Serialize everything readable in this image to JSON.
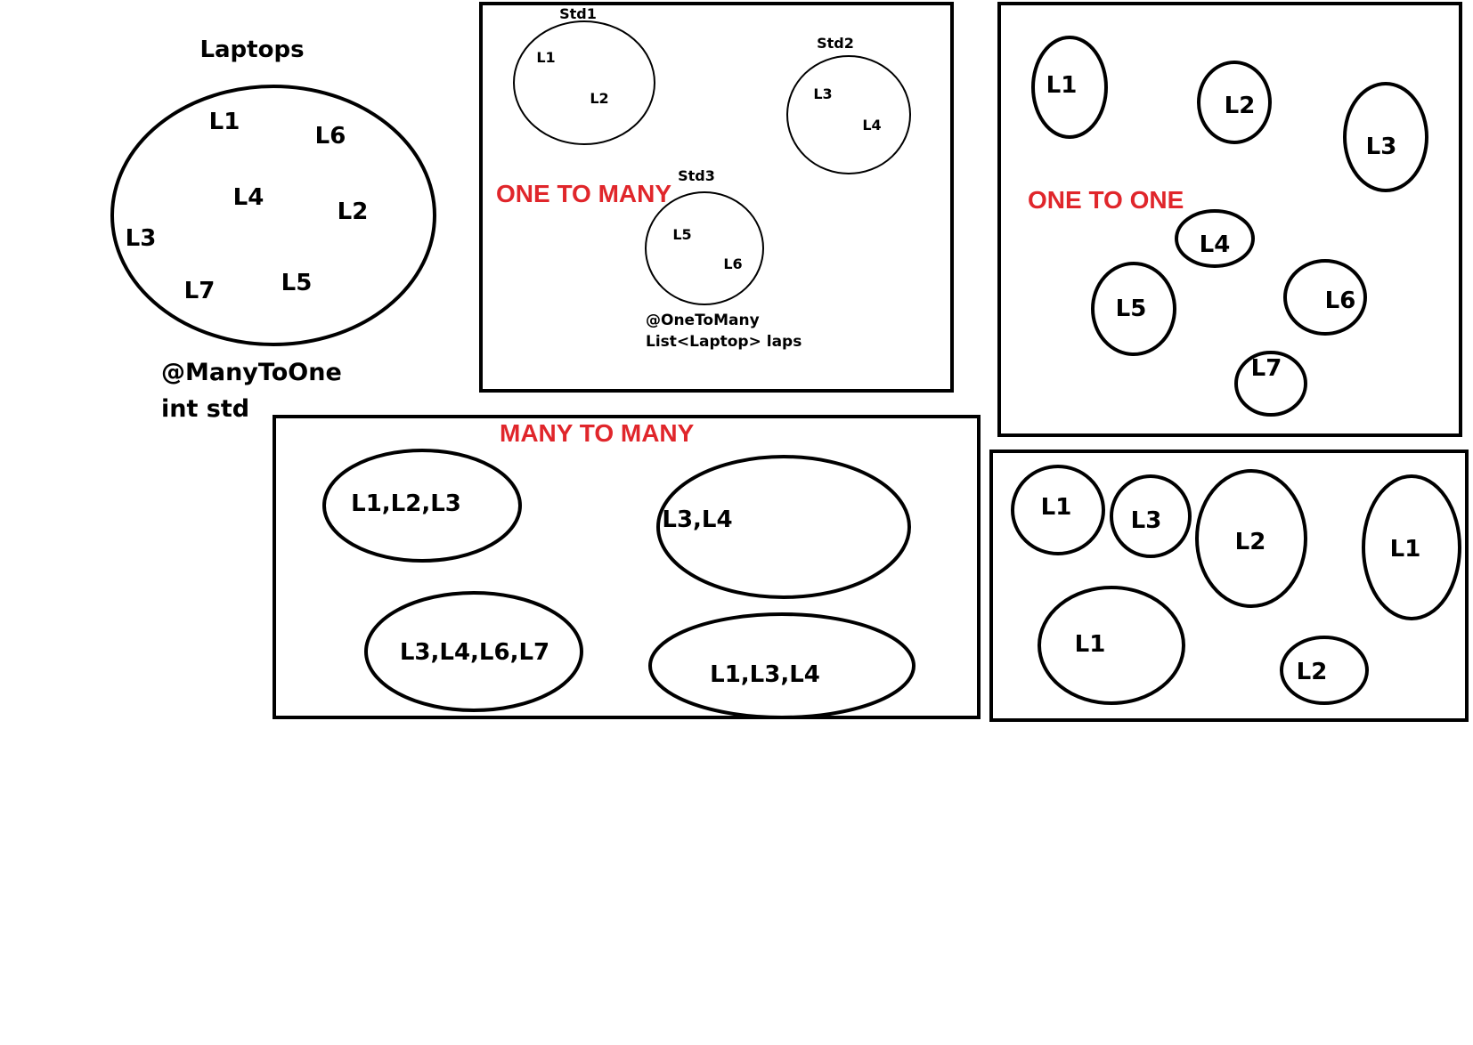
{
  "colors": {
    "ink": "#000000",
    "heading": "#e0262b",
    "background": "#ffffff"
  },
  "many_to_one": {
    "title": "Laptops",
    "items": [
      "L1",
      "L6",
      "L4",
      "L2",
      "L3",
      "L7",
      "L5"
    ],
    "annotation": [
      "@ManyToOne",
      "int std"
    ]
  },
  "one_to_many": {
    "heading": "ONE TO MANY",
    "groups": [
      {
        "name": "Std1",
        "items": [
          "L1",
          "L2"
        ]
      },
      {
        "name": "Std2",
        "items": [
          "L3",
          "L4"
        ]
      },
      {
        "name": "Std3",
        "items": [
          "L5",
          "L6"
        ]
      }
    ],
    "annotation": [
      "@OneToMany",
      "List<Laptop> laps"
    ]
  },
  "one_to_one": {
    "heading": "ONE TO ONE",
    "items": [
      "L1",
      "L2",
      "L3",
      "L4",
      "L5",
      "L6",
      "L7"
    ]
  },
  "many_to_many": {
    "heading": "MANY TO MANY",
    "groups": [
      "L1,L2,L3",
      "L3,L4",
      "L3,L4,L6,L7",
      "L1,L3,L4"
    ]
  },
  "unlabeled_panel": {
    "items": [
      "L1",
      "L3",
      "L2",
      "L1",
      "L1",
      "L2"
    ]
  }
}
